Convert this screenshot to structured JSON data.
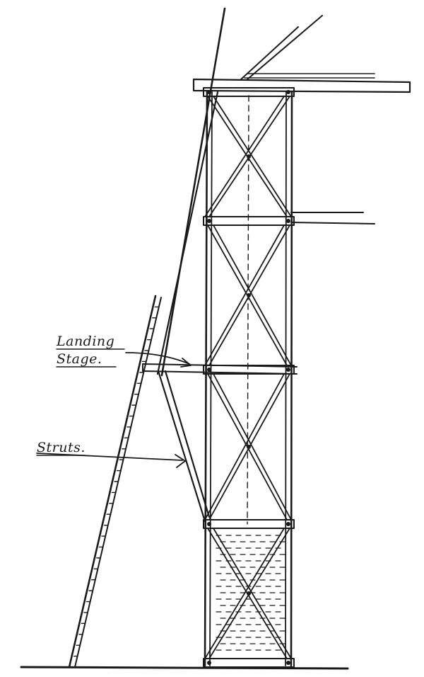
{
  "labels": {
    "landing_line1": "Landing",
    "landing_line2": "Stage.",
    "struts": "Struts."
  },
  "colors": {
    "ink": "#1a1a1a",
    "paper": "#ffffff"
  }
}
